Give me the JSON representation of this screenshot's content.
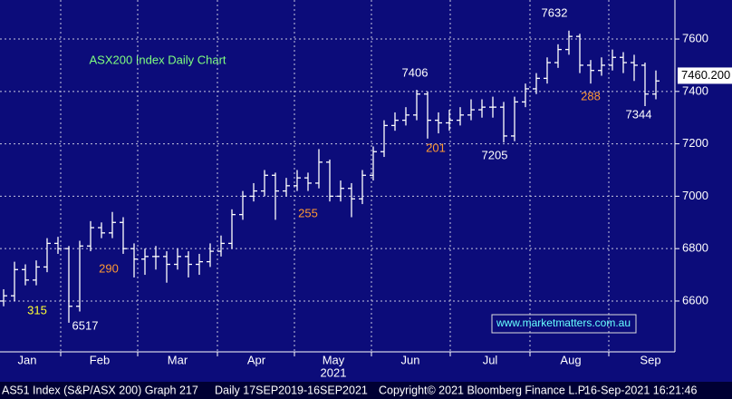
{
  "chart_data": {
    "type": "ohlc",
    "title": "ASX200 Index Daily Chart",
    "title_color": "#7fff7f",
    "background": "#0c0c7a",
    "color": "#ffffff",
    "grid": true,
    "months": [
      "Jan",
      "Feb",
      "Mar",
      "Apr",
      "May",
      "Jun",
      "Jul",
      "Aug",
      "Sep"
    ],
    "year": "2021",
    "ylim": [
      6406,
      7749
    ],
    "yticks": [
      6600,
      6800,
      7000,
      7200,
      7400,
      7600
    ],
    "open": [
      6600,
      6620,
      6720,
      6680,
      6730,
      6820,
      6800,
      6580,
      6810,
      6880,
      6860,
      6900,
      6800,
      6760,
      6770,
      6770,
      6740,
      6770,
      6740,
      6750,
      6790,
      6820,
      6930,
      7000,
      7020,
      7080,
      7020,
      7040,
      7070,
      7050,
      7130,
      7000,
      7030,
      6990,
      7080,
      7170,
      7270,
      7290,
      7310,
      7390,
      7290,
      7280,
      7290,
      7310,
      7330,
      7340,
      7340,
      7230,
      7360,
      7410,
      7450,
      7510,
      7560,
      7610,
      7500,
      7480,
      7500,
      7530,
      7510,
      7500,
      7390
    ],
    "high": [
      6645,
      6750,
      6740,
      6755,
      6840,
      6845,
      6810,
      6830,
      6905,
      6900,
      6940,
      6920,
      6820,
      6800,
      6810,
      6790,
      6800,
      6790,
      6780,
      6820,
      6850,
      6950,
      7020,
      7050,
      7100,
      7090,
      7070,
      7100,
      7090,
      7180,
      7140,
      7060,
      7050,
      7100,
      7190,
      7290,
      7320,
      7340,
      7406,
      7400,
      7320,
      7330,
      7340,
      7370,
      7370,
      7380,
      7360,
      7380,
      7430,
      7470,
      7530,
      7580,
      7632,
      7620,
      7520,
      7530,
      7560,
      7550,
      7540,
      7510,
      7480
    ],
    "low": [
      6580,
      6600,
      6660,
      6660,
      6710,
      6780,
      6517,
      6560,
      6790,
      6840,
      6840,
      6780,
      6690,
      6700,
      6720,
      6670,
      6720,
      6690,
      6700,
      6730,
      6770,
      6800,
      6910,
      6980,
      7000,
      6910,
      7000,
      7020,
      7020,
      7030,
      6980,
      6980,
      6920,
      6970,
      7060,
      7150,
      7250,
      7270,
      7290,
      7220,
      7240,
      7250,
      7270,
      7290,
      7300,
      7300,
      7205,
      7210,
      7340,
      7390,
      7430,
      7490,
      7540,
      7470,
      7430,
      7460,
      7480,
      7470,
      7440,
      7344,
      7370
    ],
    "close": [
      6620,
      6720,
      6680,
      6730,
      6820,
      6800,
      6580,
      6810,
      6880,
      6860,
      6900,
      6800,
      6760,
      6770,
      6770,
      6740,
      6770,
      6740,
      6750,
      6790,
      6820,
      6930,
      7000,
      7020,
      7080,
      7020,
      7040,
      7070,
      7050,
      7130,
      7000,
      7030,
      6990,
      7080,
      7170,
      7270,
      7290,
      7310,
      7390,
      7290,
      7280,
      7290,
      7310,
      7330,
      7340,
      7340,
      7230,
      7360,
      7410,
      7450,
      7510,
      7560,
      7610,
      7500,
      7480,
      7500,
      7530,
      7510,
      7500,
      7390,
      7440
    ],
    "last_price": {
      "value": 7460.2,
      "label": "7460.200"
    },
    "annotations": [
      {
        "text": "7632",
        "color": "#ffffff"
      },
      {
        "text": "7406",
        "color": "#ffffff"
      },
      {
        "text": "201",
        "color": "#ff9933"
      },
      {
        "text": "7205",
        "color": "#ffffff"
      },
      {
        "text": "288",
        "color": "#ff9933"
      },
      {
        "text": "7344",
        "color": "#ffffff"
      },
      {
        "text": "255",
        "color": "#ff9933"
      },
      {
        "text": "290",
        "color": "#ff9933"
      },
      {
        "text": "315",
        "color": "#ffff33"
      },
      {
        "text": "6517",
        "color": "#ffffff"
      }
    ],
    "watermark": "www.marketmatters.com.au",
    "footer": [
      "AS51 Index (S&P/ASX 200) Graph 217",
      "Daily 17SEP2019-16SEP2021",
      "Copyright© 2021 Bloomberg Finance L.P.",
      "16-Sep-2021 16:21:46"
    ]
  }
}
